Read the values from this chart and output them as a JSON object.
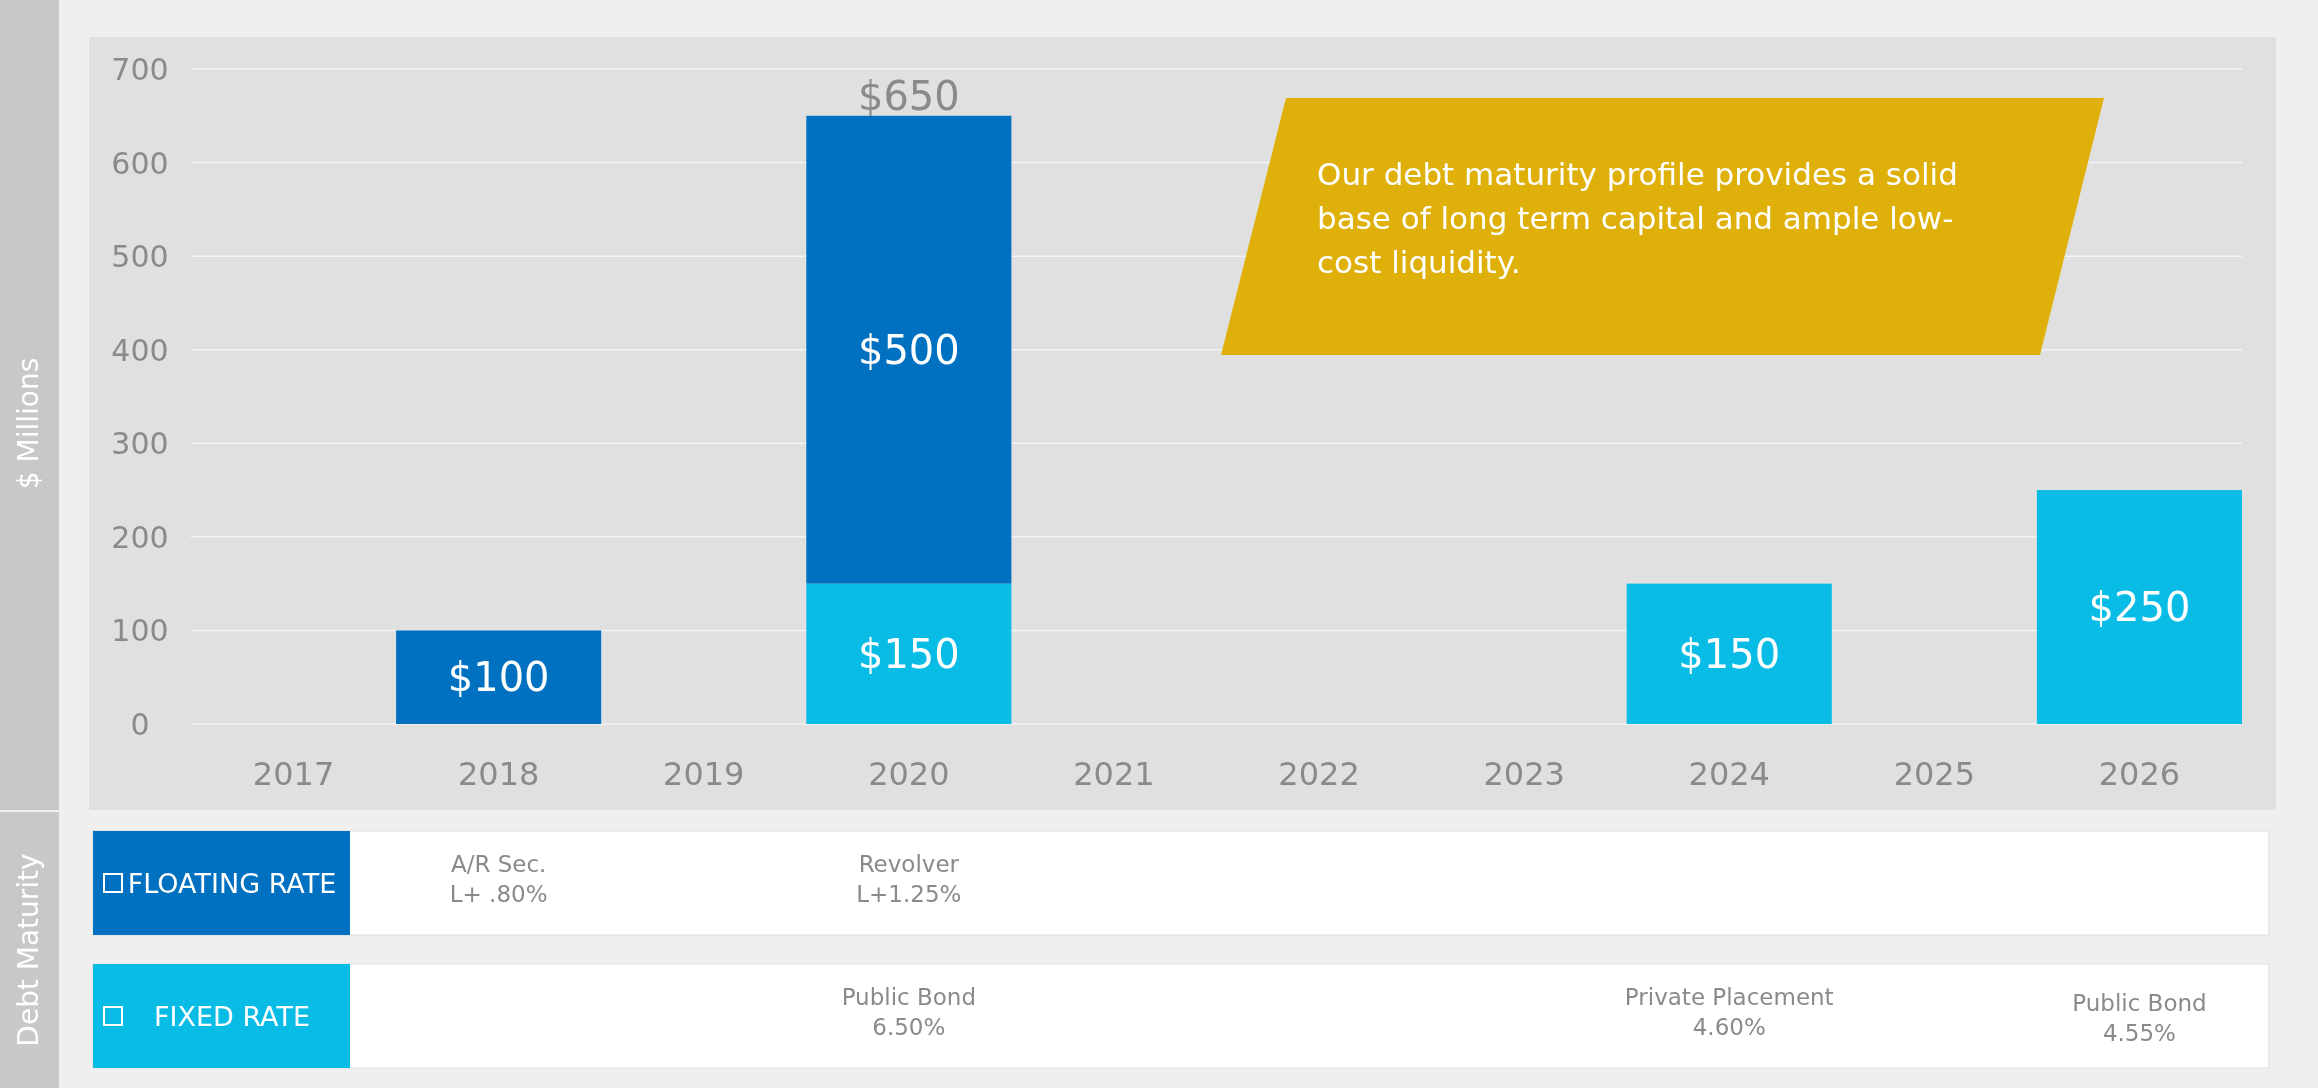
{
  "chart_data": {
    "type": "bar",
    "stacked": true,
    "ylabel": "$ Millions",
    "categories": [
      "2017",
      "2018",
      "2019",
      "2020",
      "2021",
      "2022",
      "2023",
      "2024",
      "2025",
      "2026"
    ],
    "series": [
      {
        "name": "FIXED RATE",
        "color": "#08bce6",
        "values": [
          null,
          null,
          null,
          150,
          null,
          null,
          null,
          150,
          null,
          250
        ],
        "value_labels": [
          null,
          null,
          null,
          "$150",
          null,
          null,
          null,
          "$150",
          null,
          "$250"
        ]
      },
      {
        "name": "FLOATING RATE",
        "color": "#0070c0",
        "values": [
          null,
          100,
          null,
          500,
          null,
          null,
          null,
          null,
          null,
          null
        ],
        "value_labels": [
          null,
          "$100",
          null,
          "$500",
          null,
          null,
          null,
          null,
          null,
          null
        ]
      }
    ],
    "totals": [
      null,
      null,
      null,
      "$650",
      null,
      null,
      null,
      null,
      null,
      null
    ],
    "ylim": [
      0,
      700
    ],
    "yticks": [
      0,
      100,
      200,
      300,
      400,
      500,
      600,
      700
    ],
    "grid": "y",
    "legend": "bottom",
    "annotations": [
      "Our debt maturity profile provides a solid\nbase of long term capital and ample low-\ncost liquidity.",
      "Debt Maturity",
      "A/R Sec.\nL+ .80%",
      "Revolver\nL+1.25%",
      "Public Bond\n6.50%",
      "Private Placement\n4.60%",
      "Public Bond\n4.55%"
    ]
  }
}
